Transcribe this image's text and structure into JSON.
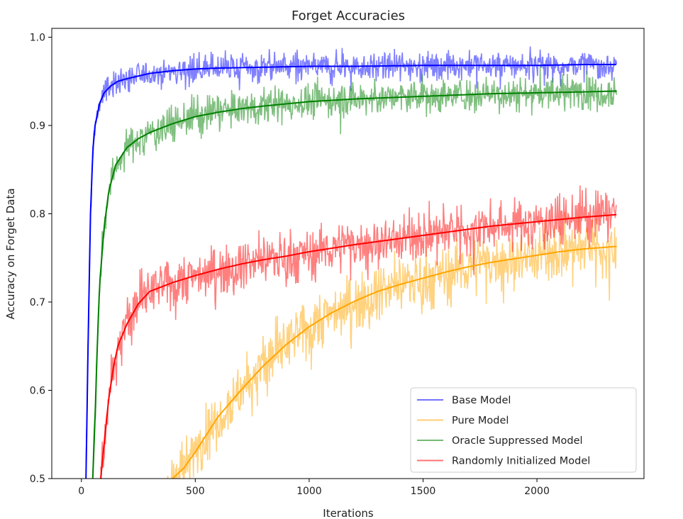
{
  "chart_data": {
    "type": "line",
    "title": "Forget Accuracies",
    "xlabel": "Iterations",
    "ylabel": "Accuracy on Forget Data",
    "xlim": [
      -130,
      2470
    ],
    "ylim": [
      0.5,
      1.01
    ],
    "xticks": [
      0,
      500,
      1000,
      1500,
      2000
    ],
    "yticks": [
      0.5,
      0.6,
      0.7,
      0.8,
      0.9,
      1.0
    ],
    "grid": false,
    "legend_position": "lower-right",
    "series": [
      {
        "name": "Base Model",
        "color": "#0000ff",
        "smoothed": {
          "x": [
            20,
            30,
            40,
            50,
            60,
            80,
            100,
            130,
            160,
            200,
            250,
            300,
            400,
            500,
            600,
            800,
            1000,
            1200,
            1500,
            1800,
            2000,
            2200,
            2350
          ],
          "y": [
            0.5,
            0.66,
            0.8,
            0.87,
            0.9,
            0.925,
            0.937,
            0.945,
            0.95,
            0.953,
            0.956,
            0.959,
            0.962,
            0.964,
            0.965,
            0.966,
            0.967,
            0.967,
            0.968,
            0.968,
            0.968,
            0.969,
            0.969
          ]
        },
        "raw_noise": 0.011
      },
      {
        "name": "Pure Model",
        "color": "#ffa500",
        "smoothed": {
          "x": [
            370,
            400,
            450,
            500,
            550,
            600,
            700,
            800,
            900,
            1000,
            1100,
            1200,
            1300,
            1400,
            1500,
            1600,
            1700,
            1800,
            1900,
            2000,
            2100,
            2200,
            2350
          ],
          "y": [
            0.49,
            0.5,
            0.512,
            0.53,
            0.55,
            0.57,
            0.6,
            0.628,
            0.652,
            0.672,
            0.688,
            0.701,
            0.712,
            0.72,
            0.727,
            0.734,
            0.74,
            0.745,
            0.749,
            0.753,
            0.757,
            0.76,
            0.763
          ]
        },
        "raw_noise": 0.022
      },
      {
        "name": "Oracle Suppressed Model",
        "color": "#008000",
        "smoothed": {
          "x": [
            50,
            60,
            70,
            80,
            100,
            120,
            150,
            200,
            250,
            300,
            400,
            500,
            600,
            700,
            800,
            1000,
            1200,
            1500,
            1800,
            2000,
            2200,
            2350
          ],
          "y": [
            0.5,
            0.57,
            0.65,
            0.72,
            0.785,
            0.825,
            0.855,
            0.875,
            0.885,
            0.892,
            0.902,
            0.91,
            0.915,
            0.919,
            0.922,
            0.927,
            0.93,
            0.933,
            0.936,
            0.937,
            0.938,
            0.939
          ]
        },
        "raw_noise": 0.014
      },
      {
        "name": "Randomly Initialized Model",
        "color": "#ff0000",
        "smoothed": {
          "x": [
            85,
            100,
            120,
            140,
            160,
            200,
            250,
            300,
            400,
            500,
            600,
            700,
            800,
            900,
            1000,
            1200,
            1400,
            1600,
            1800,
            2000,
            2200,
            2350
          ],
          "y": [
            0.5,
            0.54,
            0.59,
            0.625,
            0.65,
            0.675,
            0.698,
            0.712,
            0.722,
            0.73,
            0.737,
            0.743,
            0.748,
            0.752,
            0.757,
            0.765,
            0.772,
            0.779,
            0.786,
            0.791,
            0.796,
            0.799
          ]
        },
        "raw_noise": 0.019
      }
    ]
  }
}
